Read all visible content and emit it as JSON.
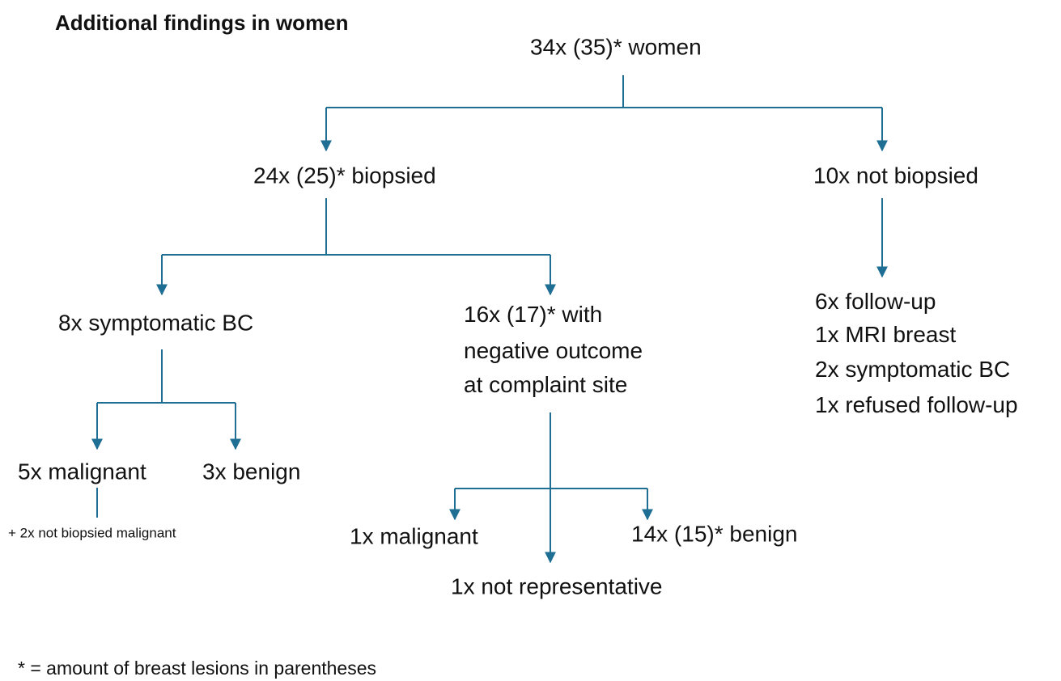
{
  "title": "Additional findings in women",
  "nodes": [
    {
      "label": "34x (35)* women"
    },
    {
      "label": "24x (25)* biopsied"
    },
    {
      "label": "10x not biopsied"
    },
    {
      "label": "8x symptomatic BC"
    },
    {
      "lines": [
        "16x (17)* with",
        "negative outcome",
        "at complaint site"
      ]
    },
    {
      "lines": [
        "6x follow-up",
        "1x MRI breast",
        "2x symptomatic BC",
        "1x refused follow-up"
      ]
    },
    {
      "label": "5x malignant"
    },
    {
      "label": "3x benign"
    },
    {
      "label": "+ 2x not biopsied malignant"
    },
    {
      "label": "1x malignant"
    },
    {
      "label": "14x (15)* benign"
    },
    {
      "label": "1x not representative"
    }
  ],
  "footnote": "* = amount of breast lesions in parentheses"
}
